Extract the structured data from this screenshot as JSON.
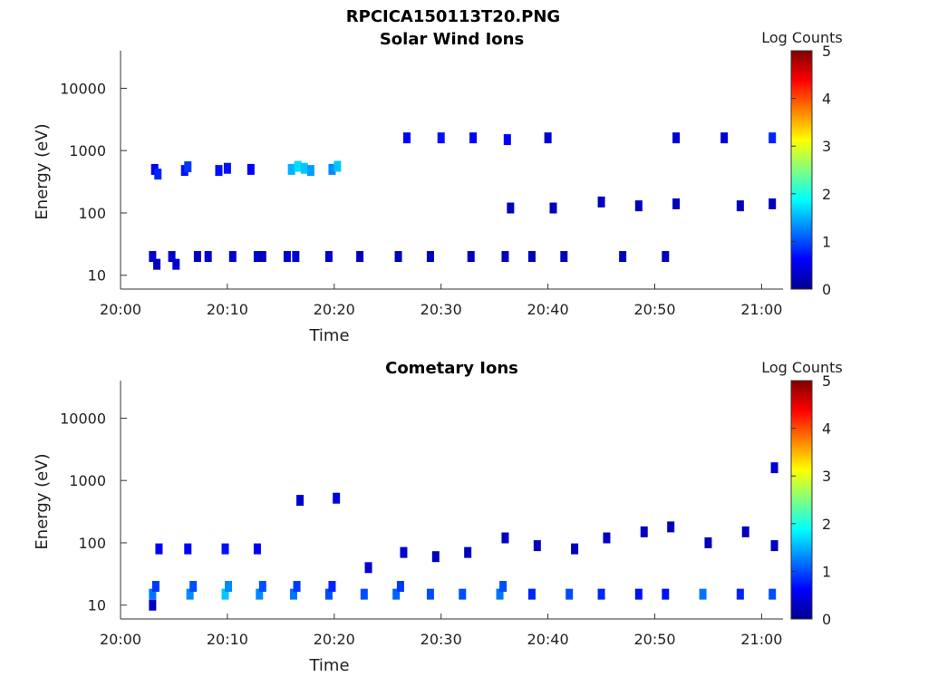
{
  "figure": {
    "file_title": "RPCICA150113T20.PNG"
  },
  "chart_data": [
    {
      "type": "heatmap",
      "title": "Solar Wind Ions",
      "xlabel": "Time",
      "ylabel": "Energy (eV)",
      "colorbar_label": "Log Counts",
      "yscale": "log",
      "ylim": [
        6,
        40000
      ],
      "xlim": [
        "20:00",
        "21:02"
      ],
      "xticks": [
        "20:00",
        "20:10",
        "20:20",
        "20:30",
        "20:40",
        "20:50",
        "21:00"
      ],
      "yticks": [
        "10",
        "100",
        "1000",
        "10000"
      ],
      "colorbar_ticks": [
        "0",
        "1",
        "2",
        "3",
        "4",
        "5"
      ],
      "colorbar_range": [
        0,
        5
      ],
      "colormap": "jet",
      "cells": [
        [
          3.0,
          20,
          0.4
        ],
        [
          3.4,
          15,
          0.3
        ],
        [
          3.2,
          500,
          0.6
        ],
        [
          3.5,
          420,
          0.8
        ],
        [
          4.8,
          20,
          0.4
        ],
        [
          5.2,
          15,
          0.4
        ],
        [
          6.0,
          480,
          0.7
        ],
        [
          6.3,
          550,
          0.9
        ],
        [
          7.2,
          20,
          0.3
        ],
        [
          8.2,
          20,
          0.4
        ],
        [
          9.2,
          480,
          0.7
        ],
        [
          10.0,
          520,
          0.7
        ],
        [
          10.5,
          20,
          0.4
        ],
        [
          12.2,
          500,
          0.6
        ],
        [
          12.8,
          20,
          0.4
        ],
        [
          13.3,
          20,
          0.3
        ],
        [
          15.6,
          20,
          0.4
        ],
        [
          16.4,
          20,
          0.4
        ],
        [
          16.0,
          500,
          1.5
        ],
        [
          16.6,
          560,
          1.7
        ],
        [
          17.2,
          520,
          1.6
        ],
        [
          17.8,
          480,
          1.4
        ],
        [
          19.8,
          500,
          1.3
        ],
        [
          20.3,
          560,
          1.6
        ],
        [
          19.5,
          20,
          0.4
        ],
        [
          22.4,
          20,
          0.3
        ],
        [
          26.0,
          20,
          0.3
        ],
        [
          26.8,
          1600,
          0.6
        ],
        [
          29.0,
          20,
          0.3
        ],
        [
          30.0,
          1600,
          0.7
        ],
        [
          32.8,
          20,
          0.3
        ],
        [
          33.0,
          1600,
          0.6
        ],
        [
          36.0,
          20,
          0.3
        ],
        [
          36.2,
          1500,
          0.6
        ],
        [
          38.5,
          20,
          0.3
        ],
        [
          40.0,
          1600,
          0.4
        ],
        [
          41.5,
          20,
          0.3
        ],
        [
          47.0,
          20,
          0.3
        ],
        [
          51.0,
          20,
          0.3
        ],
        [
          52.0,
          1600,
          0.4
        ],
        [
          56.5,
          1600,
          0.4
        ],
        [
          61.0,
          1600,
          0.8
        ],
        [
          36.5,
          120,
          0.3
        ],
        [
          40.5,
          120,
          0.3
        ],
        [
          45.0,
          150,
          0.3
        ],
        [
          48.5,
          130,
          0.3
        ],
        [
          52.0,
          140,
          0.3
        ],
        [
          58.0,
          130,
          0.3
        ],
        [
          61.0,
          140,
          0.3
        ]
      ]
    },
    {
      "type": "heatmap",
      "title": "Cometary Ions",
      "xlabel": "Time",
      "ylabel": "Energy (eV)",
      "colorbar_label": "Log Counts",
      "yscale": "log",
      "ylim": [
        6,
        40000
      ],
      "xlim": [
        "20:00",
        "21:02"
      ],
      "xticks": [
        "20:00",
        "20:10",
        "20:20",
        "20:30",
        "20:40",
        "20:50",
        "21:00"
      ],
      "yticks": [
        "10",
        "100",
        "1000",
        "10000"
      ],
      "colorbar_ticks": [
        "0",
        "1",
        "2",
        "3",
        "4",
        "5"
      ],
      "colorbar_range": [
        0,
        5
      ],
      "colormap": "jet",
      "cells": [
        [
          3.0,
          15,
          1.2
        ],
        [
          3.3,
          20,
          0.9
        ],
        [
          3.6,
          80,
          0.6
        ],
        [
          3.0,
          10,
          0.3
        ],
        [
          6.5,
          15,
          1.3
        ],
        [
          6.8,
          20,
          1.0
        ],
        [
          6.3,
          80,
          0.6
        ],
        [
          9.8,
          15,
          1.6
        ],
        [
          10.1,
          20,
          1.3
        ],
        [
          9.8,
          80,
          0.7
        ],
        [
          13.0,
          15,
          1.3
        ],
        [
          13.3,
          20,
          1.0
        ],
        [
          12.8,
          80,
          0.6
        ],
        [
          16.2,
          15,
          1.2
        ],
        [
          16.5,
          20,
          0.9
        ],
        [
          16.8,
          480,
          0.4
        ],
        [
          19.5,
          15,
          1.0
        ],
        [
          19.8,
          20,
          0.8
        ],
        [
          20.2,
          520,
          0.5
        ],
        [
          22.8,
          15,
          1.0
        ],
        [
          23.2,
          40,
          0.4
        ],
        [
          25.8,
          15,
          1.1
        ],
        [
          26.2,
          20,
          0.9
        ],
        [
          26.5,
          70,
          0.4
        ],
        [
          29.0,
          15,
          1.0
        ],
        [
          29.5,
          60,
          0.3
        ],
        [
          32.0,
          15,
          1.0
        ],
        [
          32.5,
          70,
          0.3
        ],
        [
          35.5,
          15,
          1.2
        ],
        [
          35.8,
          20,
          1.0
        ],
        [
          36.0,
          120,
          0.3
        ],
        [
          38.5,
          15,
          0.8
        ],
        [
          39.0,
          90,
          0.3
        ],
        [
          42.0,
          15,
          1.0
        ],
        [
          42.5,
          80,
          0.3
        ],
        [
          45.0,
          15,
          0.8
        ],
        [
          45.5,
          120,
          0.3
        ],
        [
          48.5,
          15,
          0.7
        ],
        [
          49.0,
          150,
          0.3
        ],
        [
          51.0,
          15,
          0.7
        ],
        [
          51.5,
          180,
          0.3
        ],
        [
          54.5,
          15,
          1.2
        ],
        [
          55.0,
          100,
          0.3
        ],
        [
          58.0,
          15,
          0.8
        ],
        [
          58.5,
          150,
          0.3
        ],
        [
          61.0,
          15,
          1.0
        ],
        [
          61.2,
          90,
          0.3
        ],
        [
          61.2,
          1600,
          0.4
        ]
      ]
    }
  ]
}
